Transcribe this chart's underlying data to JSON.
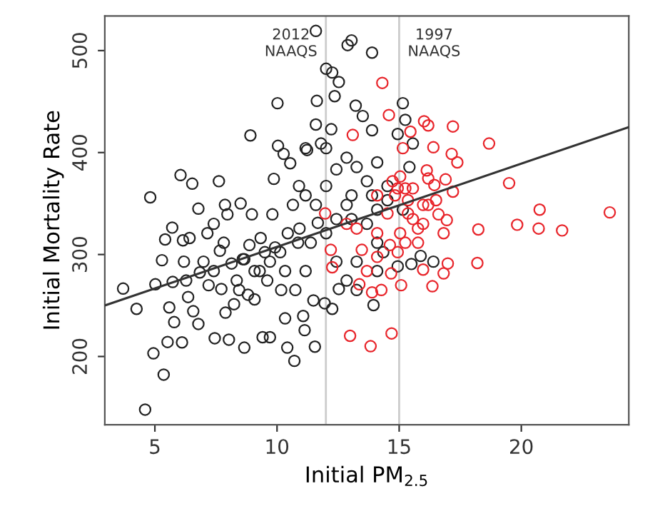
{
  "chart_data": {
    "type": "scatter",
    "xlabel": "Initial PM$_{2.5}$",
    "ylabel": "Initial Mortality Rate",
    "xlim": [
      2.95,
      24.4
    ],
    "ylim": [
      133,
      534
    ],
    "xticks": [
      5,
      10,
      15,
      20
    ],
    "yticks": [
      200,
      300,
      400,
      500
    ],
    "grid": false,
    "legend": false,
    "marker": "circle",
    "ref_lines": [
      {
        "axis": "x",
        "value": 12,
        "label": "2012\nNAAQS",
        "color": "#cccccc"
      },
      {
        "axis": "x",
        "value": 15,
        "label": "1997\nNAAQS",
        "color": "#cccccc"
      }
    ],
    "series": [
      {
        "color": "#222222",
        "x": [
          3.7,
          4.25,
          4.81,
          4.94,
          5.36,
          4.6,
          5.02,
          5.29,
          5.42,
          5.71,
          5.73,
          5.59,
          5.52,
          5.79,
          6.05,
          6.53,
          6.15,
          6.19,
          6.42,
          6.78,
          6.28,
          6.36,
          6.11,
          6.57,
          6.78,
          6.84,
          7.15,
          7.41,
          7.45,
          7.62,
          7.66,
          7.72,
          7.87,
          7.97,
          7.89,
          8.03,
          8.14,
          8.35,
          8.51,
          8.6,
          8.66,
          8.91,
          8.87,
          8.97,
          8.81,
          9.08,
          9.33,
          9.41,
          9.71,
          9.87,
          10.02,
          10.04,
          9.6,
          9.81,
          10.13,
          10.17,
          10.27,
          10.33,
          10.42,
          10.71,
          10.54,
          10.65,
          10.9,
          10.92,
          11.07,
          11.23,
          11.13,
          11.55,
          11.59,
          11.63,
          11.67,
          11.49,
          11.8,
          12.01,
          12.26,
          12.53,
          12.36,
          12.89,
          13.05,
          13.89,
          13.22,
          13.51,
          13.89,
          15.15,
          15.25,
          14.94,
          15.56,
          15.42,
          15.15,
          15.88,
          16.4,
          15.5,
          13.95,
          12.26,
          11.95,
          12.53,
          12.85,
          13.26,
          14.1,
          14.35,
          13.05,
          13.68,
          14.1,
          14.52,
          13.68,
          13.26,
          12.85,
          12.43,
          12.01,
          11.59,
          11.17,
          10.86,
          10.44,
          9.92,
          9.71,
          9.29,
          10.33,
          10.75,
          11.17,
          11.38,
          12.01,
          12.43,
          12.85,
          14.1,
          14.52,
          12.01,
          11.59,
          12.22,
          11.17,
          8.45,
          8.24,
          9.08,
          9.5,
          8.66,
          7.2,
          6.99,
          7.82,
          7.41,
          12.43,
          13.26,
          13.05,
          13.89,
          14.1,
          14.94
        ],
        "values": [
          266.6,
          246.7,
          356.1,
          203.1,
          182.2,
          147.9,
          270.8,
          294.4,
          314.8,
          326.4,
          273.1,
          248.1,
          214.2,
          233.7,
          377.9,
          369.5,
          313.9,
          293.0,
          316.2,
          345.0,
          274.5,
          258.3,
          213.8,
          244.4,
          231.9,
          282.4,
          320.9,
          283.8,
          217.9,
          371.9,
          303.7,
          266.2,
          348.7,
          339.4,
          243.0,
          216.5,
          291.2,
          274.5,
          350.1,
          295.4,
          208.7,
          416.8,
          309.3,
          339.4,
          260.6,
          283.8,
          316.2,
          218.9,
          218.9,
          374.2,
          448.4,
          406.6,
          274.5,
          339.4,
          302.3,
          265.2,
          398.7,
          237.4,
          208.7,
          195.7,
          389.5,
          348.7,
          367.2,
          325.5,
          239.7,
          402.5,
          225.8,
          209.6,
          519.3,
          450.7,
          331.1,
          255.0,
          408.9,
          482.2,
          478.5,
          469.2,
          455.3,
          505.4,
          510.0,
          498.0,
          446.0,
          435.8,
          421.9,
          448.4,
          432.1,
          418.2,
          408.9,
          385.8,
          344.0,
          298.6,
          293.0,
          290.7,
          250.4,
          246.7,
          252.2,
          266.2,
          274.5,
          293.0,
          283.8,
          302.3,
          334.8,
          330.1,
          344.0,
          353.3,
          371.9,
          385.8,
          395.0,
          383.5,
          367.2,
          348.7,
          358.0,
          311.6,
          320.9,
          307.0,
          293.0,
          283.8,
          283.8,
          265.2,
          283.8,
          311.6,
          320.9,
          334.8,
          348.7,
          390.4,
          367.2,
          404.3,
          427.5,
          422.9,
          404.3,
          265.2,
          251.3,
          256.0,
          302.3,
          295.4,
          269.9,
          293.0,
          311.6,
          330.1,
          293.0,
          265.2,
          358.0,
          358.0,
          311.6,
          288.4
        ]
      },
      {
        "color": "#e8242a",
        "x": [
          14.31,
          14.58,
          13.1,
          16.02,
          16.19,
          17.2,
          16.4,
          18.68,
          17.15,
          17.38,
          16.13,
          16.19,
          16.44,
          16.9,
          17.2,
          19.5,
          23.62,
          20.75,
          20.71,
          19.83,
          18.24,
          21.67,
          16.95,
          18.2,
          16.99,
          15.98,
          16.36,
          16.82,
          15.08,
          14.27,
          14.67,
          12.99,
          13.83,
          14.69,
          13.89,
          13.37,
          12.26,
          12.2,
          11.97,
          12.85,
          14.1,
          15.36,
          15.56,
          15.77,
          15.98,
          16.19,
          16.51,
          16.61,
          15.36,
          15.04,
          15.25,
          15.77,
          14.94,
          14.62,
          14.1,
          13.68,
          13.47,
          13.26,
          14.52,
          14.83,
          15.25,
          15.56,
          15.04,
          14.73,
          14.1,
          15.15,
          15.46,
          14.94,
          15.98,
          16.82
        ],
        "values": [
          468.3,
          436.8,
          417.3,
          430.7,
          426.6,
          425.6,
          405.2,
          408.9,
          398.7,
          390.4,
          382.5,
          374.6,
          368.2,
          373.7,
          361.7,
          370.0,
          341.3,
          344.0,
          325.5,
          329.2,
          324.6,
          323.6,
          333.8,
          291.7,
          291.2,
          285.2,
          268.9,
          281.5,
          269.9,
          265.2,
          281.5,
          220.3,
          210.1,
          222.6,
          262.9,
          270.8,
          287.5,
          304.6,
          340.3,
          330.1,
          320.9,
          340.3,
          334.8,
          325.5,
          330.1,
          348.7,
          353.3,
          339.4,
          353.3,
          320.9,
          311.6,
          311.6,
          302.3,
          309.3,
          297.7,
          283.8,
          304.6,
          325.5,
          340.3,
          358.0,
          364.9,
          364.9,
          376.5,
          371.9,
          358.0,
          404.3,
          420.5,
          364.9,
          348.7,
          320.9
        ]
      },
      {
        "type": "line",
        "marker": "none",
        "color": "#333333",
        "x": [
          2.95,
          24.4
        ],
        "values": [
          250,
          425
        ]
      }
    ]
  }
}
